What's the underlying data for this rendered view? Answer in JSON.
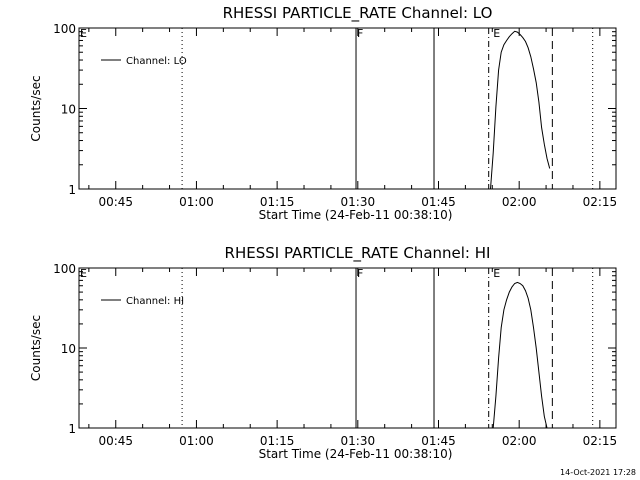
{
  "footer": {
    "timestamp": "14-Oct-2021 17:28"
  },
  "chart_data": [
    {
      "type": "line",
      "title": "RHESSI PARTICLE_RATE Channel: LO",
      "xlabel": "Start Time (24-Feb-11 00:38:10)",
      "ylabel": "Counts/sec",
      "yscale": "log",
      "ylim": [
        1,
        100
      ],
      "xlim": [
        "00:38:10",
        "02:18:00"
      ],
      "x_tick_labels": [
        "00:45",
        "01:00",
        "01:15",
        "01:30",
        "01:45",
        "02:00",
        "02:15"
      ],
      "y_tick_labels": [
        "1",
        "10",
        "100"
      ],
      "legend": {
        "entries": [
          "Channel: LO"
        ],
        "position": "top-left"
      },
      "markers": [
        {
          "label": "E",
          "time": "00:38:10",
          "style": "none"
        },
        {
          "label": "",
          "time": "00:57:20",
          "style": "dotted"
        },
        {
          "label": "F",
          "time": "01:29:40",
          "style": "solid"
        },
        {
          "label": "",
          "time": "01:44:10",
          "style": "solid"
        },
        {
          "label": "",
          "time": "01:54:20",
          "style": "dash-dot"
        },
        {
          "label": "E",
          "time": "01:55:00",
          "style": "none"
        },
        {
          "label": "",
          "time": "02:06:10",
          "style": "dashed"
        },
        {
          "label": "",
          "time": "02:13:40",
          "style": "dotted"
        }
      ],
      "series": [
        {
          "name": "Channel: LO",
          "x": [
            "01:54:40",
            "01:55:10",
            "01:55:40",
            "01:56:10",
            "01:56:40",
            "01:57:10",
            "01:57:40",
            "01:58:10",
            "01:58:40",
            "01:59:10",
            "01:59:40",
            "02:00:10",
            "02:00:40",
            "02:01:10",
            "02:01:40",
            "02:02:10",
            "02:02:40",
            "02:03:10",
            "02:03:40",
            "02:04:10",
            "02:04:40",
            "02:05:10",
            "02:05:40"
          ],
          "values": [
            1.0,
            2.8,
            10.5,
            30,
            50,
            62,
            70,
            78,
            85,
            91,
            89,
            83,
            76,
            68,
            57,
            44,
            31,
            21,
            12,
            5.8,
            3.6,
            2.4,
            1.8
          ]
        }
      ]
    },
    {
      "type": "line",
      "title": "RHESSI PARTICLE_RATE Channel: HI",
      "xlabel": "Start Time (24-Feb-11 00:38:10)",
      "ylabel": "Counts/sec",
      "yscale": "log",
      "ylim": [
        1,
        100
      ],
      "xlim": [
        "00:38:10",
        "02:18:00"
      ],
      "x_tick_labels": [
        "00:45",
        "01:00",
        "01:15",
        "01:30",
        "01:45",
        "02:00",
        "02:15"
      ],
      "y_tick_labels": [
        "1",
        "10",
        "100"
      ],
      "legend": {
        "entries": [
          "Channel: HI"
        ],
        "position": "top-left"
      },
      "markers": [
        {
          "label": "E",
          "time": "00:38:10",
          "style": "none"
        },
        {
          "label": "",
          "time": "00:57:20",
          "style": "dotted"
        },
        {
          "label": "F",
          "time": "01:29:40",
          "style": "solid"
        },
        {
          "label": "",
          "time": "01:44:10",
          "style": "solid"
        },
        {
          "label": "",
          "time": "01:54:20",
          "style": "dash-dot"
        },
        {
          "label": "E",
          "time": "01:55:00",
          "style": "none"
        },
        {
          "label": "",
          "time": "02:06:10",
          "style": "dashed"
        },
        {
          "label": "",
          "time": "02:13:40",
          "style": "dotted"
        }
      ],
      "series": [
        {
          "name": "Channel: HI",
          "x": [
            "01:55:10",
            "01:55:40",
            "01:56:10",
            "01:56:40",
            "01:57:10",
            "01:57:40",
            "01:58:10",
            "01:58:40",
            "01:59:10",
            "01:59:40",
            "02:00:10",
            "02:00:40",
            "02:01:10",
            "02:01:40",
            "02:02:10",
            "02:02:40",
            "02:03:10",
            "02:03:40",
            "02:04:10",
            "02:04:40",
            "02:05:10"
          ],
          "values": [
            1.0,
            2.5,
            7.5,
            18,
            30,
            40,
            50,
            58,
            64,
            66,
            64,
            60,
            52,
            42,
            30,
            18,
            10,
            5,
            2.5,
            1.4,
            1.0
          ]
        }
      ]
    }
  ]
}
